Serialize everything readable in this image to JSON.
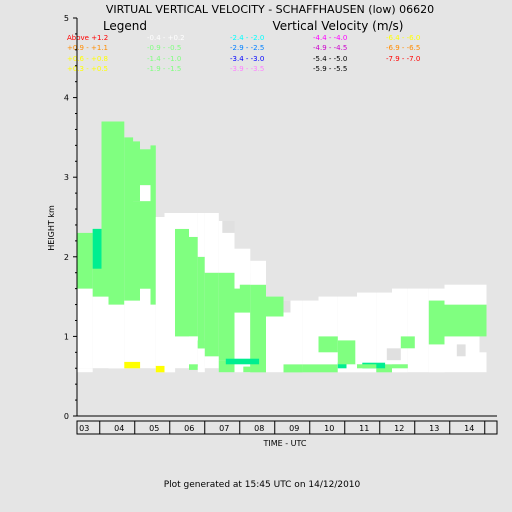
{
  "chart_data": {
    "type": "heatmap",
    "title": "VIRTUAL VERTICAL VELOCITY - SCHAFFHAUSEN (low) 06620",
    "legend_title": "Legend",
    "legend_subtitle": "Vertical Velocity (m/s)",
    "xlabel": "TIME - UTC",
    "ylabel": "HEIGHT km",
    "footer": "Plot generated at 15:45 UTC on 14/12/2010",
    "x_ticks": [
      "03",
      "04",
      "05",
      "06",
      "07",
      "08",
      "09",
      "10",
      "11",
      "12",
      "13",
      "14"
    ],
    "y_ticks": [
      "0",
      "1",
      "2",
      "3",
      "4",
      "5"
    ],
    "xlim": [
      2.85,
      14.85
    ],
    "ylim": [
      0,
      5
    ],
    "legend_entries": [
      {
        "text": "Above  +1.2",
        "color": "#ff0000"
      },
      {
        "text": "+0.9 - +1.1",
        "color": "#ff8c00"
      },
      {
        "text": "+0.6 - +0.8",
        "color": "#ffff00"
      },
      {
        "text": "+0.3 - +0.5",
        "color": "#ffff00"
      },
      {
        "text": "-0.4 - +0.2",
        "color": "#ffffff"
      },
      {
        "text": "-0.9 - -0.5",
        "color": "#80ff80"
      },
      {
        "text": "-1.4 - -1.0",
        "color": "#80ff80"
      },
      {
        "text": "-1.9 - -1.5",
        "color": "#80ff80"
      },
      {
        "text": "-2.4 - -2.0",
        "color": "#00ffff"
      },
      {
        "text": "-2.9 - -2.5",
        "color": "#0080ff"
      },
      {
        "text": "-3.4 - -3.0",
        "color": "#0000ff"
      },
      {
        "text": "-3.9 - -3.5",
        "color": "#ff80ff"
      },
      {
        "text": "-4.4 - -4.0",
        "color": "#ff00ff"
      },
      {
        "text": "-4.9 - -4.5",
        "color": "#cc00cc"
      },
      {
        "text": "-5.4 - -5.0",
        "color": "#000000"
      },
      {
        "text": "-5.9 - -5.5",
        "color": "#000000"
      },
      {
        "text": "-6.4 - -6.0",
        "color": "#ffff00"
      },
      {
        "text": "-6.9 - -6.5",
        "color": "#ff8c00"
      },
      {
        "text": "-7.9 - -7.0",
        "color": "#ff0000"
      }
    ],
    "colors": {
      "white": "#ffffff",
      "green": "#80ff80",
      "teal": "#00ee90",
      "yellow": "#ffff00",
      "grey": "#e0e0e0"
    },
    "cells": [
      {
        "x": [
          2.85,
          3.3
        ],
        "y": [
          0.6,
          1.6
        ],
        "c": "white"
      },
      {
        "x": [
          2.85,
          3.3
        ],
        "y": [
          1.6,
          2.3
        ],
        "c": "green"
      },
      {
        "x": [
          3.3,
          3.55
        ],
        "y": [
          0.6,
          1.5
        ],
        "c": "white"
      },
      {
        "x": [
          3.3,
          3.55
        ],
        "y": [
          1.5,
          2.35
        ],
        "c": "green"
      },
      {
        "x": [
          3.3,
          3.55
        ],
        "y": [
          1.85,
          2.35
        ],
        "c": "teal"
      },
      {
        "x": [
          3.55,
          3.75
        ],
        "y": [
          0.6,
          1.5
        ],
        "c": "white"
      },
      {
        "x": [
          3.55,
          3.75
        ],
        "y": [
          1.5,
          3.7
        ],
        "c": "green"
      },
      {
        "x": [
          3.75,
          4.2
        ],
        "y": [
          0.6,
          1.4
        ],
        "c": "white"
      },
      {
        "x": [
          3.75,
          4.2
        ],
        "y": [
          1.4,
          3.7
        ],
        "c": "green"
      },
      {
        "x": [
          4.2,
          4.45
        ],
        "y": [
          0.6,
          1.45
        ],
        "c": "white"
      },
      {
        "x": [
          4.2,
          4.45
        ],
        "y": [
          1.45,
          3.5
        ],
        "c": "green"
      },
      {
        "x": [
          4.45,
          4.65
        ],
        "y": [
          0.6,
          1.45
        ],
        "c": "white"
      },
      {
        "x": [
          4.45,
          4.65
        ],
        "y": [
          1.45,
          2.7
        ],
        "c": "green"
      },
      {
        "x": [
          4.45,
          4.65
        ],
        "y": [
          2.7,
          3.45
        ],
        "c": "green"
      },
      {
        "x": [
          4.65,
          4.95
        ],
        "y": [
          0.6,
          1.6
        ],
        "c": "white"
      },
      {
        "x": [
          4.65,
          4.95
        ],
        "y": [
          1.6,
          2.7
        ],
        "c": "green"
      },
      {
        "x": [
          4.65,
          4.95
        ],
        "y": [
          2.7,
          2.9
        ],
        "c": "white"
      },
      {
        "x": [
          4.65,
          4.95
        ],
        "y": [
          2.9,
          3.35
        ],
        "c": "green"
      },
      {
        "x": [
          4.95,
          5.1
        ],
        "y": [
          0.6,
          1.4
        ],
        "c": "white"
      },
      {
        "x": [
          4.95,
          5.1
        ],
        "y": [
          1.4,
          3.4
        ],
        "c": "green"
      },
      {
        "x": [
          5.1,
          5.65
        ],
        "y": [
          0.55,
          2.5
        ],
        "c": "white"
      },
      {
        "x": [
          5.65,
          6.05
        ],
        "y": [
          0.6,
          1.0
        ],
        "c": "white"
      },
      {
        "x": [
          5.65,
          6.05
        ],
        "y": [
          1.0,
          2.35
        ],
        "c": "green"
      },
      {
        "x": [
          5.65,
          6.05
        ],
        "y": [
          2.35,
          2.55
        ],
        "c": "white"
      },
      {
        "x": [
          6.05,
          6.3
        ],
        "y": [
          0.6,
          1.0
        ],
        "c": "white"
      },
      {
        "x": [
          6.05,
          6.3
        ],
        "y": [
          1.0,
          2.25
        ],
        "c": "green"
      },
      {
        "x": [
          6.05,
          6.3
        ],
        "y": [
          2.25,
          2.55
        ],
        "c": "white"
      },
      {
        "x": [
          6.3,
          6.5
        ],
        "y": [
          0.6,
          0.85
        ],
        "c": "white"
      },
      {
        "x": [
          6.3,
          6.5
        ],
        "y": [
          0.85,
          2.0
        ],
        "c": "green"
      },
      {
        "x": [
          6.3,
          6.5
        ],
        "y": [
          2.0,
          2.55
        ],
        "c": "white"
      },
      {
        "x": [
          6.5,
          6.9
        ],
        "y": [
          0.6,
          0.75
        ],
        "c": "white"
      },
      {
        "x": [
          6.5,
          6.9
        ],
        "y": [
          0.75,
          1.8
        ],
        "c": "green"
      },
      {
        "x": [
          6.5,
          6.9
        ],
        "y": [
          1.8,
          2.55
        ],
        "c": "white"
      },
      {
        "x": [
          6.9,
          7.35
        ],
        "y": [
          0.55,
          0.7
        ],
        "c": "green"
      },
      {
        "x": [
          6.9,
          7.35
        ],
        "y": [
          0.7,
          1.8
        ],
        "c": "green"
      },
      {
        "x": [
          6.9,
          7.35
        ],
        "y": [
          1.8,
          2.45
        ],
        "c": "white"
      },
      {
        "x": [
          7.35,
          7.8
        ],
        "y": [
          0.55,
          1.3
        ],
        "c": "white"
      },
      {
        "x": [
          7.35,
          7.8
        ],
        "y": [
          1.3,
          1.65
        ],
        "c": "green"
      },
      {
        "x": [
          7.35,
          7.8
        ],
        "y": [
          1.65,
          2.1
        ],
        "c": "white"
      },
      {
        "x": [
          7.8,
          8.25
        ],
        "y": [
          0.55,
          1.2
        ],
        "c": "green"
      },
      {
        "x": [
          7.8,
          8.25
        ],
        "y": [
          1.2,
          1.65
        ],
        "c": "green"
      },
      {
        "x": [
          7.8,
          8.25
        ],
        "y": [
          1.65,
          1.95
        ],
        "c": "white"
      },
      {
        "x": [
          8.25,
          8.75
        ],
        "y": [
          0.55,
          1.25
        ],
        "c": "white"
      },
      {
        "x": [
          8.25,
          8.75
        ],
        "y": [
          1.25,
          1.5
        ],
        "c": "green"
      },
      {
        "x": [
          8.75,
          9.3
        ],
        "y": [
          0.55,
          0.65
        ],
        "c": "green"
      },
      {
        "x": [
          8.75,
          9.3
        ],
        "y": [
          0.65,
          1.45
        ],
        "c": "white"
      },
      {
        "x": [
          9.3,
          9.75
        ],
        "y": [
          0.55,
          0.65
        ],
        "c": "green"
      },
      {
        "x": [
          9.3,
          9.75
        ],
        "y": [
          0.65,
          1.45
        ],
        "c": "white"
      },
      {
        "x": [
          9.75,
          10.3
        ],
        "y": [
          0.55,
          0.65
        ],
        "c": "green"
      },
      {
        "x": [
          9.75,
          10.3
        ],
        "y": [
          0.65,
          1.5
        ],
        "c": "white"
      },
      {
        "x": [
          10.3,
          10.85
        ],
        "y": [
          0.55,
          0.65
        ],
        "c": "white"
      },
      {
        "x": [
          10.3,
          10.85
        ],
        "y": [
          0.65,
          1.5
        ],
        "c": "white"
      },
      {
        "x": [
          10.85,
          11.4
        ],
        "y": [
          0.55,
          0.65
        ],
        "c": "white"
      },
      {
        "x": [
          10.85,
          11.4
        ],
        "y": [
          0.65,
          1.55
        ],
        "c": "white"
      },
      {
        "x": [
          11.4,
          11.85
        ],
        "y": [
          0.55,
          0.65
        ],
        "c": "green"
      },
      {
        "x": [
          11.4,
          11.85
        ],
        "y": [
          0.65,
          1.55
        ],
        "c": "white"
      },
      {
        "x": [
          11.85,
          12.3
        ],
        "y": [
          0.55,
          0.65
        ],
        "c": "white"
      },
      {
        "x": [
          11.85,
          12.3
        ],
        "y": [
          0.65,
          1.6
        ],
        "c": "white"
      },
      {
        "x": [
          12.3,
          12.9
        ],
        "y": [
          0.55,
          1.6
        ],
        "c": "white"
      },
      {
        "x": [
          12.9,
          13.35
        ],
        "y": [
          0.55,
          0.9
        ],
        "c": "white"
      },
      {
        "x": [
          12.9,
          13.35
        ],
        "y": [
          0.9,
          1.45
        ],
        "c": "green"
      },
      {
        "x": [
          12.9,
          13.35
        ],
        "y": [
          1.45,
          1.6
        ],
        "c": "white"
      },
      {
        "x": [
          13.35,
          14.35
        ],
        "y": [
          0.55,
          1.0
        ],
        "c": "white"
      },
      {
        "x": [
          13.35,
          14.35
        ],
        "y": [
          1.0,
          1.4
        ],
        "c": "green"
      },
      {
        "x": [
          13.35,
          14.35
        ],
        "y": [
          1.4,
          1.65
        ],
        "c": "white"
      },
      {
        "x": [
          14.35,
          14.55
        ],
        "y": [
          0.55,
          0.8
        ],
        "c": "white"
      },
      {
        "x": [
          14.35,
          14.55
        ],
        "y": [
          1.0,
          1.4
        ],
        "c": "green"
      },
      {
        "x": [
          14.35,
          14.55
        ],
        "y": [
          1.4,
          1.65
        ],
        "c": "white"
      },
      {
        "x": [
          2.85,
          3.3
        ],
        "y": [
          0.55,
          0.6
        ],
        "c": "white"
      },
      {
        "x": [
          3.75,
          4.2
        ],
        "y": [
          0.6,
          0.65
        ],
        "c": "white"
      },
      {
        "x": [
          4.2,
          4.65
        ],
        "y": [
          0.6,
          0.68
        ],
        "c": "yellow"
      },
      {
        "x": [
          5.1,
          5.35
        ],
        "y": [
          0.55,
          0.63
        ],
        "c": "yellow"
      },
      {
        "x": [
          5.35,
          5.65
        ],
        "y": [
          0.55,
          2.55
        ],
        "c": "white"
      },
      {
        "x": [
          7.35,
          7.5
        ],
        "y": [
          1.6,
          1.85
        ],
        "c": "white"
      },
      {
        "x": [
          7.1,
          8.05
        ],
        "y": [
          0.65,
          0.72
        ],
        "c": "teal"
      },
      {
        "x": [
          10.3,
          10.55
        ],
        "y": [
          0.6,
          0.67
        ],
        "c": "teal"
      },
      {
        "x": [
          11.0,
          11.65
        ],
        "y": [
          0.6,
          0.67
        ],
        "c": "teal"
      },
      {
        "x": [
          10.3,
          10.8
        ],
        "y": [
          0.65,
          0.95
        ],
        "c": "green"
      },
      {
        "x": [
          9.75,
          10.3
        ],
        "y": [
          0.8,
          1.0
        ],
        "c": "green"
      },
      {
        "x": [
          10.85,
          11.4
        ],
        "y": [
          0.6,
          0.65
        ],
        "c": "green"
      },
      {
        "x": [
          11.7,
          12.1
        ],
        "y": [
          0.7,
          0.85
        ],
        "c": "grey"
      },
      {
        "x": [
          12.1,
          12.5
        ],
        "y": [
          0.85,
          1.0
        ],
        "c": "green"
      },
      {
        "x": [
          11.85,
          12.3
        ],
        "y": [
          0.6,
          0.65
        ],
        "c": "green"
      },
      {
        "x": [
          6.05,
          6.3
        ],
        "y": [
          0.58,
          0.65
        ],
        "c": "green"
      },
      {
        "x": [
          6.3,
          6.5
        ],
        "y": [
          0.85,
          0.95
        ],
        "c": "green"
      },
      {
        "x": [
          6.05,
          6.3
        ],
        "y": [
          0.95,
          1.0
        ],
        "c": "white"
      },
      {
        "x": [
          7.0,
          7.35
        ],
        "y": [
          2.3,
          2.45
        ],
        "c": "grey"
      },
      {
        "x": [
          7.35,
          7.8
        ],
        "y": [
          1.8,
          2.1
        ],
        "c": "white"
      },
      {
        "x": [
          13.7,
          13.95
        ],
        "y": [
          0.75,
          0.9
        ],
        "c": "grey"
      },
      {
        "x": [
          8.75,
          8.95
        ],
        "y": [
          1.3,
          1.45
        ],
        "c": "grey"
      },
      {
        "x": [
          8.75,
          9.3
        ],
        "y": [
          0.55,
          0.62
        ],
        "c": "green"
      },
      {
        "x": [
          7.8,
          8.25
        ],
        "y": [
          0.55,
          0.62
        ],
        "c": "green"
      },
      {
        "x": [
          7.6,
          7.8
        ],
        "y": [
          0.55,
          0.62
        ],
        "c": "green"
      },
      {
        "x": [
          6.3,
          6.5
        ],
        "y": [
          0.55,
          0.62
        ],
        "c": "white"
      }
    ]
  }
}
